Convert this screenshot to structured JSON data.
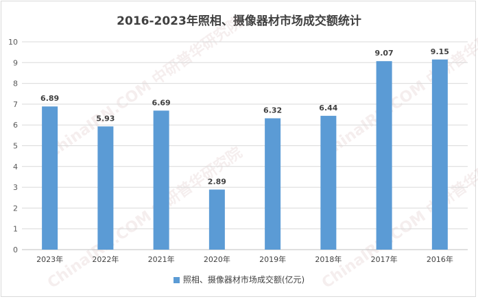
{
  "chart_data": {
    "type": "bar",
    "title": "2016-2023年照相、摄像器材市场成交额统计",
    "categories": [
      "2023年",
      "2022年",
      "2021年",
      "2020年",
      "2019年",
      "2018年",
      "2017年",
      "2016年"
    ],
    "series": [
      {
        "name": "照相、摄像器材市场成交额(亿元)",
        "values": [
          6.89,
          5.93,
          6.69,
          2.89,
          6.32,
          6.44,
          9.07,
          9.15
        ]
      }
    ],
    "data_labels": [
      "6.89",
      "5.93",
      "6.69",
      "2.89",
      "6.32",
      "6.44",
      "9.07",
      "9.15"
    ],
    "y_ticks": [
      "0",
      "1",
      "2",
      "3",
      "4",
      "5",
      "6",
      "7",
      "8",
      "9",
      "10"
    ],
    "ylim": [
      0,
      10
    ],
    "grid": true,
    "legend_position": "bottom",
    "bar_color": "#5b9bd5",
    "watermark": "ChinaIRN.COM 中研普华研究院"
  }
}
